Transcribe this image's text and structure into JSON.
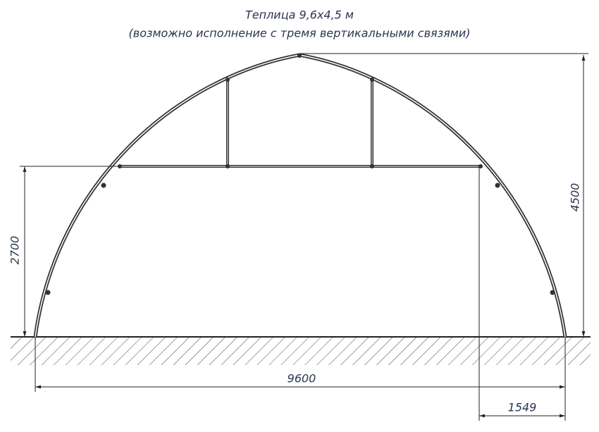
{
  "header": {
    "title": "Теплица 9,6х4,5 м",
    "subtitle": "(возможно исполнение с тремя вертикальными связями)"
  },
  "dimensions": {
    "height": "4500",
    "wall_height": "2700",
    "width": "9600",
    "offset": "1549"
  }
}
